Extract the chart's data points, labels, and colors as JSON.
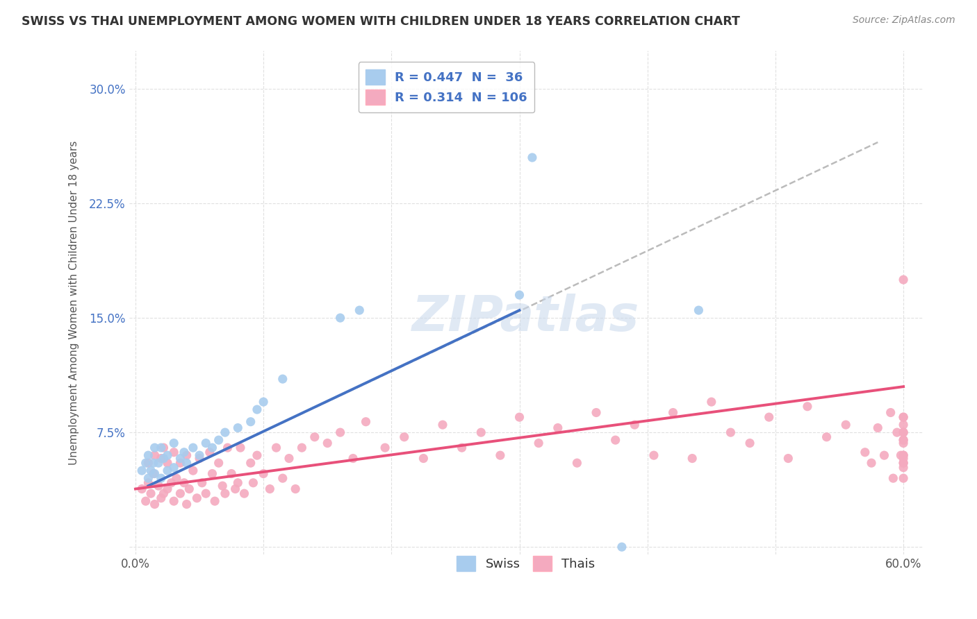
{
  "title": "SWISS VS THAI UNEMPLOYMENT AMONG WOMEN WITH CHILDREN UNDER 18 YEARS CORRELATION CHART",
  "source": "Source: ZipAtlas.com",
  "ylabel": "Unemployment Among Women with Children Under 18 years",
  "xlim": [
    -0.005,
    0.615
  ],
  "ylim": [
    -0.005,
    0.325
  ],
  "xticks": [
    0.0,
    0.1,
    0.2,
    0.3,
    0.4,
    0.5,
    0.6
  ],
  "xticklabels": [
    "0.0%",
    "",
    "",
    "",
    "",
    "",
    "60.0%"
  ],
  "yticks": [
    0.0,
    0.075,
    0.15,
    0.225,
    0.3
  ],
  "yticklabels": [
    "",
    "7.5%",
    "15.0%",
    "22.5%",
    "30.0%"
  ],
  "swiss_R": 0.447,
  "swiss_N": 36,
  "thai_R": 0.314,
  "thai_N": 106,
  "swiss_color": "#A8CCEE",
  "thai_color": "#F4AABF",
  "swiss_line_color": "#4472C4",
  "thai_line_color": "#E8507A",
  "trend_line_color": "#BBBBBB",
  "background_color": "#FFFFFF",
  "swiss_x": [
    0.005,
    0.008,
    0.01,
    0.01,
    0.012,
    0.014,
    0.015,
    0.015,
    0.018,
    0.02,
    0.02,
    0.022,
    0.025,
    0.025,
    0.03,
    0.03,
    0.035,
    0.038,
    0.04,
    0.045,
    0.05,
    0.055,
    0.06,
    0.065,
    0.07,
    0.08,
    0.09,
    0.095,
    0.1,
    0.115,
    0.16,
    0.175,
    0.3,
    0.31,
    0.38,
    0.44
  ],
  "swiss_y": [
    0.05,
    0.055,
    0.045,
    0.06,
    0.05,
    0.055,
    0.048,
    0.065,
    0.055,
    0.045,
    0.065,
    0.058,
    0.05,
    0.06,
    0.052,
    0.068,
    0.058,
    0.062,
    0.055,
    0.065,
    0.06,
    0.068,
    0.065,
    0.07,
    0.075,
    0.078,
    0.082,
    0.09,
    0.095,
    0.11,
    0.15,
    0.155,
    0.165,
    0.255,
    0.0,
    0.155
  ],
  "thai_x": [
    0.005,
    0.008,
    0.01,
    0.01,
    0.012,
    0.014,
    0.015,
    0.015,
    0.018,
    0.02,
    0.02,
    0.022,
    0.022,
    0.025,
    0.025,
    0.028,
    0.03,
    0.03,
    0.032,
    0.035,
    0.035,
    0.038,
    0.04,
    0.04,
    0.042,
    0.045,
    0.048,
    0.05,
    0.052,
    0.055,
    0.058,
    0.06,
    0.062,
    0.065,
    0.068,
    0.07,
    0.072,
    0.075,
    0.078,
    0.08,
    0.082,
    0.085,
    0.09,
    0.092,
    0.095,
    0.1,
    0.105,
    0.11,
    0.115,
    0.12,
    0.125,
    0.13,
    0.14,
    0.15,
    0.16,
    0.17,
    0.18,
    0.195,
    0.21,
    0.225,
    0.24,
    0.255,
    0.27,
    0.285,
    0.3,
    0.315,
    0.33,
    0.345,
    0.36,
    0.375,
    0.39,
    0.405,
    0.42,
    0.435,
    0.45,
    0.465,
    0.48,
    0.495,
    0.51,
    0.525,
    0.54,
    0.555,
    0.57,
    0.575,
    0.58,
    0.585,
    0.59,
    0.592,
    0.595,
    0.598,
    0.6,
    0.6,
    0.6,
    0.6,
    0.6,
    0.6,
    0.6,
    0.6,
    0.6,
    0.6,
    0.6,
    0.6,
    0.6,
    0.6,
    0.6,
    0.6
  ],
  "thai_y": [
    0.038,
    0.03,
    0.042,
    0.055,
    0.035,
    0.048,
    0.028,
    0.06,
    0.04,
    0.032,
    0.058,
    0.035,
    0.065,
    0.038,
    0.055,
    0.042,
    0.03,
    0.062,
    0.045,
    0.035,
    0.055,
    0.042,
    0.028,
    0.06,
    0.038,
    0.05,
    0.032,
    0.058,
    0.042,
    0.035,
    0.062,
    0.048,
    0.03,
    0.055,
    0.04,
    0.035,
    0.065,
    0.048,
    0.038,
    0.042,
    0.065,
    0.035,
    0.055,
    0.042,
    0.06,
    0.048,
    0.038,
    0.065,
    0.045,
    0.058,
    0.038,
    0.065,
    0.072,
    0.068,
    0.075,
    0.058,
    0.082,
    0.065,
    0.072,
    0.058,
    0.08,
    0.065,
    0.075,
    0.06,
    0.085,
    0.068,
    0.078,
    0.055,
    0.088,
    0.07,
    0.08,
    0.06,
    0.088,
    0.058,
    0.095,
    0.075,
    0.068,
    0.085,
    0.058,
    0.092,
    0.072,
    0.08,
    0.062,
    0.055,
    0.078,
    0.06,
    0.088,
    0.045,
    0.075,
    0.06,
    0.085,
    0.055,
    0.075,
    0.06,
    0.07,
    0.052,
    0.08,
    0.058,
    0.068,
    0.045,
    0.075,
    0.06,
    0.085,
    0.055,
    0.07,
    0.175
  ],
  "swiss_line": [
    0.01,
    0.3,
    0.04,
    0.155
  ],
  "thai_line": [
    0.0,
    0.6,
    0.038,
    0.105
  ],
  "dash_line": [
    0.01,
    0.58,
    0.04,
    0.265
  ],
  "watermark_text": "ZIPatlas",
  "legend1_text": [
    "R = 0.447  N =  36",
    "R = 0.314  N = 106"
  ]
}
